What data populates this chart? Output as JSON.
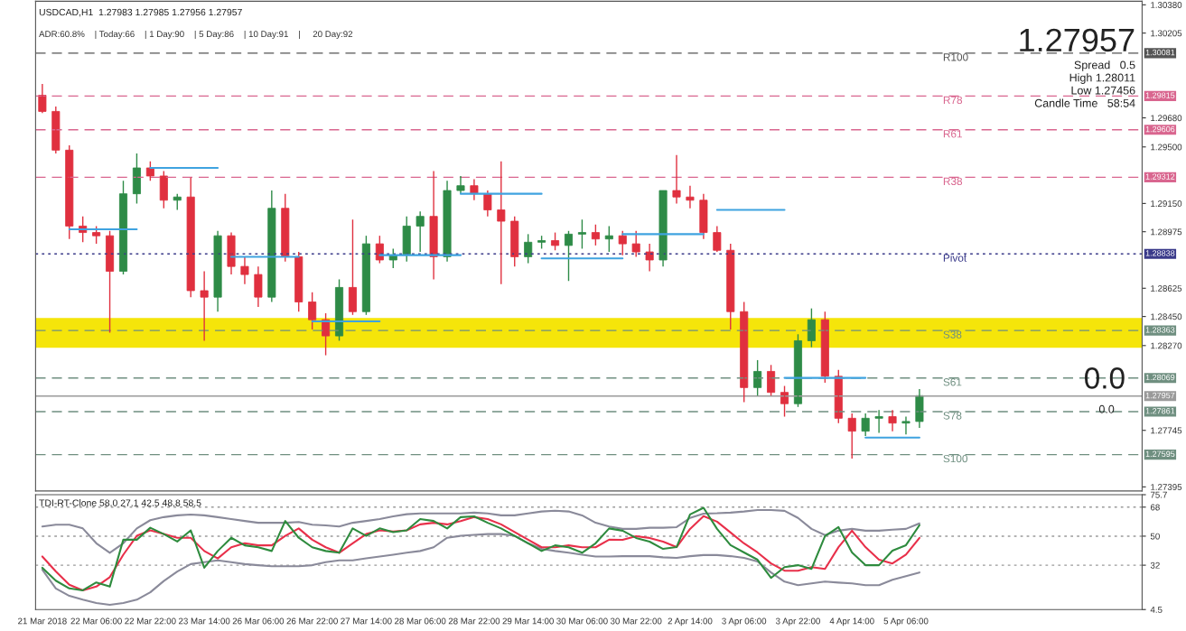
{
  "chart_data": [
    {
      "type": "candlestick",
      "title": "USDCAD,H1  1.27983 1.27985 1.27956 1.27957",
      "subtitle": "ADR:60.8%    | Today:66    | 1 Day:90    | 5 Day:86    | 10 Day:91    |     20 Day:92",
      "ohlc": [
        [
          1.2982,
          1.2989,
          1.2971,
          1.2972
        ],
        [
          1.2972,
          1.2975,
          1.2946,
          1.2948
        ],
        [
          1.2948,
          1.2951,
          1.2893,
          1.2901
        ],
        [
          1.2901,
          1.2907,
          1.2891,
          1.2897
        ],
        [
          1.2897,
          1.2901,
          1.289,
          1.2895
        ],
        [
          1.2895,
          1.2898,
          1.2835,
          1.2873
        ],
        [
          1.2873,
          1.2929,
          1.2871,
          1.2921
        ],
        [
          1.2921,
          1.2946,
          1.2915,
          1.2937
        ],
        [
          1.2937,
          1.2941,
          1.2929,
          1.2932
        ],
        [
          1.2932,
          1.2935,
          1.2912,
          1.2917
        ],
        [
          1.2917,
          1.2921,
          1.2911,
          1.2919
        ],
        [
          1.2919,
          1.2931,
          1.2857,
          1.2861
        ],
        [
          1.2861,
          1.2873,
          1.283,
          1.2857
        ],
        [
          1.2857,
          1.2898,
          1.2848,
          1.2895
        ],
        [
          1.2895,
          1.2897,
          1.2871,
          1.2876
        ],
        [
          1.2876,
          1.2882,
          1.2865,
          1.2871
        ],
        [
          1.2871,
          1.2876,
          1.2851,
          1.2857
        ],
        [
          1.2857,
          1.2923,
          1.2854,
          1.2912
        ],
        [
          1.2912,
          1.2921,
          1.2879,
          1.2882
        ],
        [
          1.2882,
          1.2885,
          1.2848,
          1.2854
        ],
        [
          1.2854,
          1.286,
          1.2837,
          1.2843
        ],
        [
          1.2843,
          1.2847,
          1.2821,
          1.2833
        ],
        [
          1.2833,
          1.2868,
          1.283,
          1.2863
        ],
        [
          1.2863,
          1.2905,
          1.2846,
          1.2848
        ],
        [
          1.2848,
          1.2895,
          1.2846,
          1.289
        ],
        [
          1.289,
          1.2895,
          1.2878,
          1.288
        ],
        [
          1.288,
          1.2887,
          1.2875,
          1.2883
        ],
        [
          1.2883,
          1.2907,
          1.2879,
          1.2901
        ],
        [
          1.2901,
          1.291,
          1.2885,
          1.2907
        ],
        [
          1.2907,
          1.2935,
          1.2868,
          1.2882
        ],
        [
          1.2882,
          1.2929,
          1.2879,
          1.2923
        ],
        [
          1.2923,
          1.2932,
          1.2921,
          1.2926
        ],
        [
          1.2926,
          1.293,
          1.2917,
          1.2921
        ],
        [
          1.2921,
          1.2923,
          1.2907,
          1.2911
        ],
        [
          1.2911,
          1.2941,
          1.2865,
          1.2904
        ],
        [
          1.2904,
          1.2907,
          1.2876,
          1.2882
        ],
        [
          1.2882,
          1.2896,
          1.2878,
          1.2891
        ],
        [
          1.2891,
          1.2895,
          1.2887,
          1.2892
        ],
        [
          1.2892,
          1.2897,
          1.2886,
          1.2889
        ],
        [
          1.2889,
          1.2898,
          1.2867,
          1.2896
        ],
        [
          1.2896,
          1.2905,
          1.2887,
          1.2897
        ],
        [
          1.2897,
          1.2902,
          1.2889,
          1.2893
        ],
        [
          1.2893,
          1.2901,
          1.2885,
          1.2895
        ],
        [
          1.2895,
          1.2898,
          1.2883,
          1.289
        ],
        [
          1.289,
          1.2898,
          1.2882,
          1.2885
        ],
        [
          1.2885,
          1.289,
          1.2873,
          1.288
        ],
        [
          1.288,
          1.2923,
          1.2876,
          1.2923
        ],
        [
          1.2923,
          1.2945,
          1.2915,
          1.2919
        ],
        [
          1.2919,
          1.2926,
          1.2912,
          1.2917
        ],
        [
          1.2917,
          1.2921,
          1.2893,
          1.2897
        ],
        [
          1.2897,
          1.2901,
          1.2885,
          1.2886
        ],
        [
          1.2886,
          1.289,
          1.2837,
          1.2848
        ],
        [
          1.2848,
          1.2854,
          1.2792,
          1.2801
        ],
        [
          1.2801,
          1.2818,
          1.2796,
          1.2811
        ],
        [
          1.2811,
          1.2815,
          1.2796,
          1.2798
        ],
        [
          1.2798,
          1.2802,
          1.2783,
          1.2791
        ],
        [
          1.2791,
          1.2834,
          1.2789,
          1.283
        ],
        [
          1.283,
          1.285,
          1.2826,
          1.2843
        ],
        [
          1.2843,
          1.2848,
          1.2804,
          1.2808
        ],
        [
          1.2808,
          1.2812,
          1.2779,
          1.2782
        ],
        [
          1.2782,
          1.2785,
          1.2757,
          1.2774
        ],
        [
          1.2774,
          1.2785,
          1.2771,
          1.2782
        ],
        [
          1.2782,
          1.2787,
          1.2773,
          1.2783
        ],
        [
          1.2783,
          1.2787,
          1.2774,
          1.2779
        ],
        [
          1.2779,
          1.2783,
          1.2772,
          1.278
        ],
        [
          1.278,
          1.28,
          1.2776,
          1.2796
        ],
        null,
        null,
        null,
        null,
        null,
        null,
        null,
        null,
        null,
        null,
        null,
        null,
        null,
        null,
        null,
        null
      ],
      "series": [
        {
          "type": "line",
          "color": "#3fa3e0",
          "values": [
            null,
            null,
            1.2899,
            1.2899,
            1.2899,
            1.2899,
            1.2899,
            1.2899,
            null,
            null,
            null,
            null,
            null,
            null,
            1.2882,
            1.2882,
            1.2882,
            1.2882,
            1.2882,
            1.2882,
            null,
            null,
            null,
            null,
            null,
            1.2883,
            1.2883,
            1.2883,
            1.2883,
            1.2883,
            1.2883,
            1.2883,
            null,
            null,
            null,
            null,
            null,
            1.2881,
            1.2881,
            1.2881,
            1.2881,
            1.2881,
            1.2881,
            1.2881,
            null,
            null,
            null,
            null,
            null,
            null,
            1.2911,
            1.2911,
            1.2911,
            1.2911,
            1.2911,
            1.2911,
            null,
            null,
            null,
            null,
            null,
            1.277,
            1.277,
            1.277,
            1.277,
            1.277,
            null,
            null,
            null,
            null,
            null,
            null,
            null,
            null,
            null,
            null,
            null,
            null,
            null,
            null,
            null,
            null
          ]
        },
        {
          "type": "line",
          "color": "#3fa3e0",
          "values": [
            null,
            null,
            null,
            null,
            null,
            null,
            null,
            null,
            1.2937,
            1.2937,
            1.2937,
            1.2937,
            1.2937,
            1.2937,
            null,
            null,
            null,
            null,
            null,
            null,
            1.2842,
            1.2842,
            1.2842,
            1.2842,
            1.2842,
            1.2842,
            null,
            null,
            null,
            null,
            null,
            1.2921,
            1.2921,
            1.2921,
            1.2921,
            1.2921,
            1.2921,
            1.2921,
            null,
            null,
            null,
            null,
            null,
            1.2896,
            1.2896,
            1.2896,
            1.2896,
            1.2896,
            1.2896,
            1.2896,
            null,
            null,
            null,
            null,
            null,
            1.2807,
            1.2807,
            1.2807,
            1.2807,
            1.2807,
            1.2807,
            1.2807,
            null,
            null,
            null,
            null,
            null,
            null,
            null,
            null,
            null,
            null,
            null,
            null,
            null,
            null,
            null,
            null,
            null,
            null,
            null,
            null
          ]
        }
      ],
      "ylim": [
        1.2737,
        1.30402
      ],
      "yticks": [
        {
          "value": 1.3038,
          "label": "1.30380"
        },
        {
          "value": 1.30205,
          "label": "1.30205"
        },
        {
          "value": 1.2968,
          "label": "1.29680"
        },
        {
          "value": 1.295,
          "label": "1.29500"
        },
        {
          "value": 1.2915,
          "label": "1.29150"
        },
        {
          "value": 1.28975,
          "label": "1.28975"
        },
        {
          "value": 1.28625,
          "label": "1.28625"
        },
        {
          "value": 1.2845,
          "label": "1.28450"
        },
        {
          "value": 1.2827,
          "label": "1.28270"
        },
        {
          "value": 1.27745,
          "label": "1.27745"
        },
        {
          "value": 1.27395,
          "label": "1.27395"
        }
      ],
      "tick_labels": "y",
      "ref_lines": [
        {
          "axis": "y",
          "value": 1.30081,
          "label": "R100",
          "color": "#555555",
          "line_style": "dashed"
        },
        {
          "axis": "y",
          "value": 1.29815,
          "label": "R78",
          "color": "#d9668f",
          "line_style": "dashed"
        },
        {
          "axis": "y",
          "value": 1.29606,
          "label": "R61",
          "color": "#d9668f",
          "line_style": "dashed"
        },
        {
          "axis": "y",
          "value": 1.29312,
          "label": "R38",
          "color": "#d9668f",
          "line_style": "dashed"
        },
        {
          "axis": "y",
          "value": 1.28838,
          "label": "Pivot",
          "color": "#3a3a8a",
          "line_style": "dotted"
        },
        {
          "axis": "y",
          "value": 1.28363,
          "label": "S38",
          "color": "#6f8f80",
          "line_style": "dashed"
        },
        {
          "axis": "y",
          "value": 1.28069,
          "label": "S61",
          "color": "#6f8f80",
          "line_style": "dashed"
        },
        {
          "axis": "y",
          "value": 1.27957,
          "color": "#9a9a9a",
          "line_style": "solid"
        },
        {
          "axis": "y",
          "value": 1.27861,
          "label": "S78",
          "color": "#6f8f80",
          "line_style": "dashed"
        },
        {
          "axis": "y",
          "value": 1.27595,
          "label": "S100",
          "color": "#6f8f80",
          "line_style": "dashed"
        }
      ],
      "bands": [
        {
          "axis": "y",
          "from": 1.28257,
          "to": 1.28441,
          "color": "#f5e50a"
        }
      ],
      "annotations": [
        "1.27957",
        "Spread   0.5",
        "High 1.28011",
        "Low 1.27456",
        "Candle Time   58:54",
        "0.0",
        "0.0",
        "1.30081",
        "1.29815",
        "1.29606",
        "1.29312",
        "1.28838",
        "1.28363",
        "1.28069",
        "1.27957",
        "1.27861",
        "1.27595"
      ]
    },
    {
      "type": "line",
      "title": "TDI-RT-Clone 58.0 27.1 42.5 48.8 58.5",
      "categories": [
        "21 Mar 2018",
        null,
        null,
        null,
        "22 Mar 06:00",
        null,
        null,
        null,
        "22 Mar 22:00",
        null,
        null,
        null,
        "23 Mar 14:00",
        null,
        null,
        null,
        "26 Mar 06:00",
        null,
        null,
        null,
        "26 Mar 22:00",
        null,
        null,
        null,
        "27 Mar 14:00",
        null,
        null,
        null,
        "28 Mar 06:00",
        null,
        null,
        null,
        "28 Mar 22:00",
        null,
        null,
        null,
        "29 Mar 14:00",
        null,
        null,
        null,
        "30 Mar 06:00",
        null,
        null,
        null,
        "30 Mar 22:00",
        null,
        null,
        null,
        "2 Apr 14:00",
        null,
        null,
        null,
        "3 Apr 06:00",
        null,
        null,
        null,
        "3 Apr 22:00",
        null,
        null,
        null,
        "4 Apr 14:00",
        null,
        null,
        null,
        "5 Apr 06:00",
        null,
        null,
        null,
        null,
        null,
        null,
        null,
        null,
        null,
        null,
        null,
        null,
        null,
        null,
        null,
        null,
        null
      ],
      "series": [
        {
          "color": "#8a8a9a",
          "values": [
            56.0,
            57.1,
            57.1,
            54.8,
            45.6,
            39.7,
            45.6,
            54.8,
            59.9,
            61.8,
            62.9,
            63.4,
            62.9,
            61.8,
            60.6,
            59.4,
            58.3,
            58.3,
            58.3,
            58.8,
            57.1,
            56.7,
            56.0,
            58.3,
            59.4,
            60.6,
            62.3,
            63.6,
            64.1,
            64.1,
            64.1,
            64.1,
            64.6,
            64.1,
            62.9,
            62.9,
            64.1,
            65.3,
            65.8,
            65.3,
            62.9,
            58.3,
            56.0,
            54.5,
            54.5,
            55.2,
            55.2,
            55.6,
            61.3,
            64.0,
            64.2,
            64.6,
            65.3,
            66.2,
            66.2,
            65.7,
            61.3,
            54.5,
            50.7,
            53.4,
            54.5,
            53.4,
            53.4,
            54.0,
            54.5,
            57.9,
            null,
            null,
            null,
            null,
            null,
            null,
            null,
            null,
            null,
            null,
            null,
            null,
            null,
            null,
            null,
            null
          ]
        },
        {
          "color": "#8a8a9a",
          "values": [
            29.2,
            17.6,
            13.0,
            10.6,
            8.6,
            7.4,
            8.6,
            10.6,
            15.2,
            22.2,
            28.1,
            32.7,
            33.9,
            35.0,
            33.9,
            32.7,
            32.0,
            31.4,
            31.4,
            31.4,
            32.0,
            33.9,
            35.0,
            35.0,
            36.2,
            37.4,
            38.5,
            39.7,
            40.8,
            43.1,
            49.0,
            50.2,
            50.8,
            51.3,
            51.3,
            50.2,
            45.6,
            42.1,
            40.8,
            39.7,
            38.5,
            37.4,
            37.4,
            37.6,
            37.6,
            37.6,
            36.9,
            36.5,
            37.6,
            38.3,
            38.3,
            37.6,
            36.5,
            34.3,
            27.5,
            21.8,
            19.6,
            20.7,
            21.8,
            21.2,
            20.7,
            19.6,
            19.6,
            23.0,
            25.2,
            27.5,
            null,
            null,
            null,
            null,
            null,
            null,
            null,
            null,
            null,
            null,
            null,
            null,
            null,
            null,
            null,
            null
          ]
        },
        {
          "color": "#e8304a",
          "values": [
            37.4,
            28.1,
            19.9,
            16.4,
            18.7,
            24.6,
            38.5,
            50.2,
            53.6,
            51.3,
            49.0,
            49.0,
            40.8,
            36.2,
            43.1,
            45.6,
            44.3,
            44.3,
            50.2,
            54.8,
            47.8,
            43.1,
            39.7,
            45.6,
            51.3,
            53.6,
            52.9,
            53.6,
            57.3,
            58.3,
            57.3,
            59.4,
            61.8,
            60.6,
            57.3,
            52.5,
            47.8,
            43.1,
            43.1,
            44.3,
            43.1,
            43.1,
            47.8,
            47.7,
            50.0,
            48.9,
            46.6,
            43.2,
            54.5,
            62.4,
            59.0,
            52.3,
            45.5,
            39.9,
            33.1,
            28.6,
            28.6,
            30.8,
            29.7,
            43.2,
            53.4,
            43.2,
            35.4,
            33.1,
            38.6,
            48.9,
            null,
            null,
            null,
            null,
            null,
            null,
            null,
            null,
            null,
            null,
            null,
            null,
            null,
            null,
            null,
            null
          ]
        },
        {
          "color": "#2e8b3e",
          "values": [
            30.4,
            22.4,
            17.6,
            16.4,
            21.3,
            18.7,
            47.8,
            47.8,
            55.2,
            51.3,
            46.7,
            53.6,
            30.4,
            40.8,
            49.0,
            44.3,
            43.1,
            40.8,
            59.4,
            49.0,
            43.1,
            40.8,
            39.7,
            54.8,
            50.2,
            54.8,
            52.5,
            53.6,
            60.6,
            59.4,
            54.8,
            61.8,
            62.3,
            58.3,
            54.8,
            50.2,
            45.6,
            40.8,
            44.3,
            43.1,
            39.7,
            45.6,
            54.8,
            53.4,
            48.9,
            46.6,
            42.1,
            43.2,
            63.5,
            67.6,
            54.5,
            44.4,
            39.9,
            35.4,
            24.1,
            30.8,
            32.0,
            29.7,
            50.0,
            55.6,
            39.9,
            32.0,
            32.0,
            41.0,
            44.4,
            56.8,
            null,
            null,
            null,
            null,
            null,
            null,
            null,
            null,
            null,
            null,
            null,
            null,
            null,
            null,
            null,
            null
          ]
        }
      ],
      "ylim": [
        4.5,
        75.7
      ],
      "yticks": [
        4.5,
        32,
        50,
        68,
        75.7
      ],
      "ref_lines": [
        {
          "axis": "y",
          "value": 68,
          "color": "#9a9a9a",
          "line_style": "dotted"
        },
        {
          "axis": "y",
          "value": 50,
          "color": "#9a9a9a",
          "line_style": "dotted"
        },
        {
          "axis": "y",
          "value": 32,
          "color": "#9a9a9a",
          "line_style": "dotted"
        }
      ]
    }
  ]
}
